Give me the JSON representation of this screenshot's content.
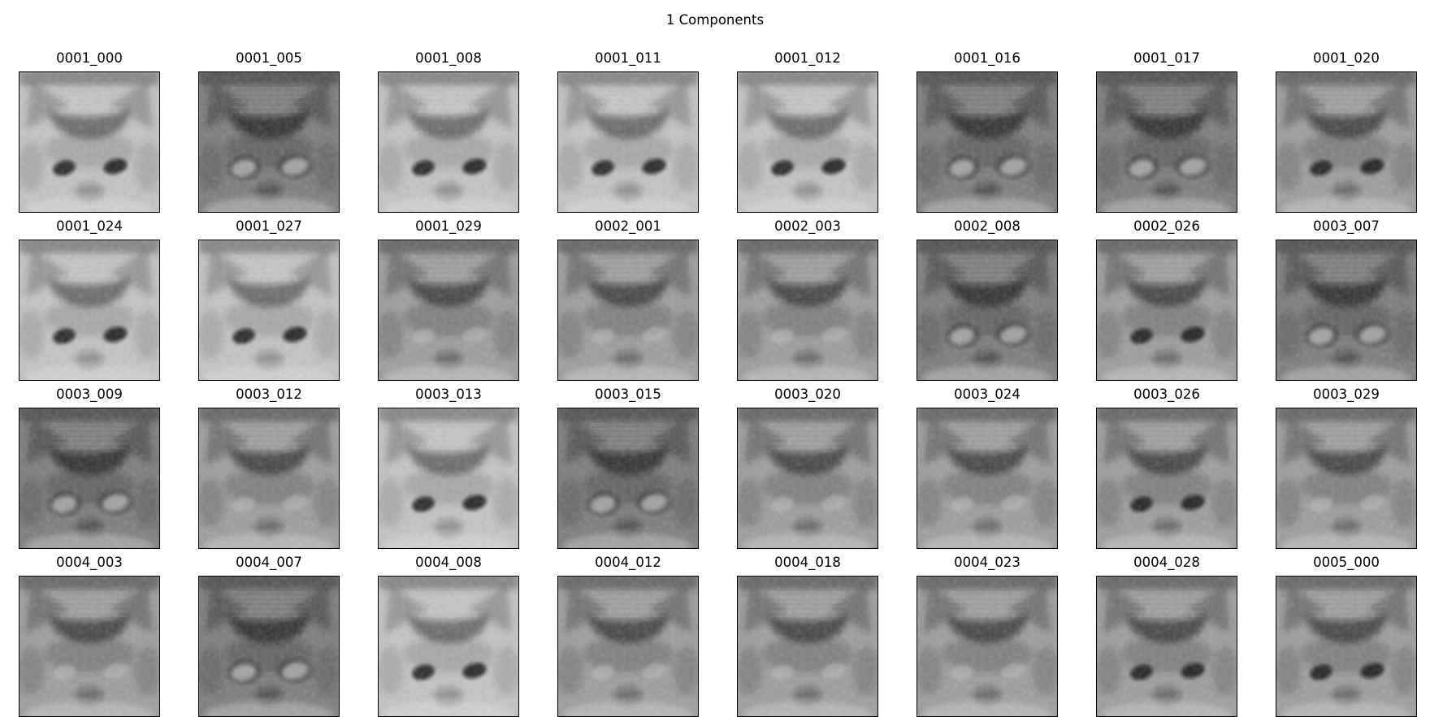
{
  "figure": {
    "title": "1 Components"
  },
  "images": [
    {
      "label": "0001_000",
      "tone": "light",
      "eyes": "dark"
    },
    {
      "label": "0001_005",
      "tone": "dark",
      "eyes": "bright"
    },
    {
      "label": "0001_008",
      "tone": "light",
      "eyes": "dark"
    },
    {
      "label": "0001_011",
      "tone": "light",
      "eyes": "dark"
    },
    {
      "label": "0001_012",
      "tone": "light",
      "eyes": "dark"
    },
    {
      "label": "0001_016",
      "tone": "dark",
      "eyes": "bright"
    },
    {
      "label": "0001_017",
      "tone": "dark",
      "eyes": "bright"
    },
    {
      "label": "0001_020",
      "tone": "medium",
      "eyes": "dark"
    },
    {
      "label": "0001_024",
      "tone": "light",
      "eyes": "dark"
    },
    {
      "label": "0001_027",
      "tone": "light",
      "eyes": "dark"
    },
    {
      "label": "0001_029",
      "tone": "medium",
      "eyes": "faint"
    },
    {
      "label": "0002_001",
      "tone": "medium",
      "eyes": "faint"
    },
    {
      "label": "0002_003",
      "tone": "medium",
      "eyes": "faint"
    },
    {
      "label": "0002_008",
      "tone": "dark",
      "eyes": "bright"
    },
    {
      "label": "0002_026",
      "tone": "medium",
      "eyes": "dark"
    },
    {
      "label": "0003_007",
      "tone": "dark",
      "eyes": "bright"
    },
    {
      "label": "0003_009",
      "tone": "dark",
      "eyes": "bright"
    },
    {
      "label": "0003_012",
      "tone": "medium",
      "eyes": "faint"
    },
    {
      "label": "0003_013",
      "tone": "light",
      "eyes": "dark"
    },
    {
      "label": "0003_015",
      "tone": "dark",
      "eyes": "bright"
    },
    {
      "label": "0003_020",
      "tone": "medium",
      "eyes": "faint"
    },
    {
      "label": "0003_024",
      "tone": "medium",
      "eyes": "faint"
    },
    {
      "label": "0003_026",
      "tone": "medium",
      "eyes": "dark"
    },
    {
      "label": "0003_029",
      "tone": "medium",
      "eyes": "faint"
    },
    {
      "label": "0004_003",
      "tone": "medium",
      "eyes": "faint"
    },
    {
      "label": "0004_007",
      "tone": "dark",
      "eyes": "bright"
    },
    {
      "label": "0004_008",
      "tone": "light",
      "eyes": "dark"
    },
    {
      "label": "0004_012",
      "tone": "medium",
      "eyes": "faint"
    },
    {
      "label": "0004_018",
      "tone": "medium",
      "eyes": "faint"
    },
    {
      "label": "0004_023",
      "tone": "medium",
      "eyes": "faint"
    },
    {
      "label": "0004_028",
      "tone": "medium",
      "eyes": "dark"
    },
    {
      "label": "0005_000",
      "tone": "medium",
      "eyes": "dark"
    }
  ],
  "palette": {
    "light": "#c4c4c4",
    "medium": "#9c9c9c",
    "dark": "#7c7c7c"
  }
}
